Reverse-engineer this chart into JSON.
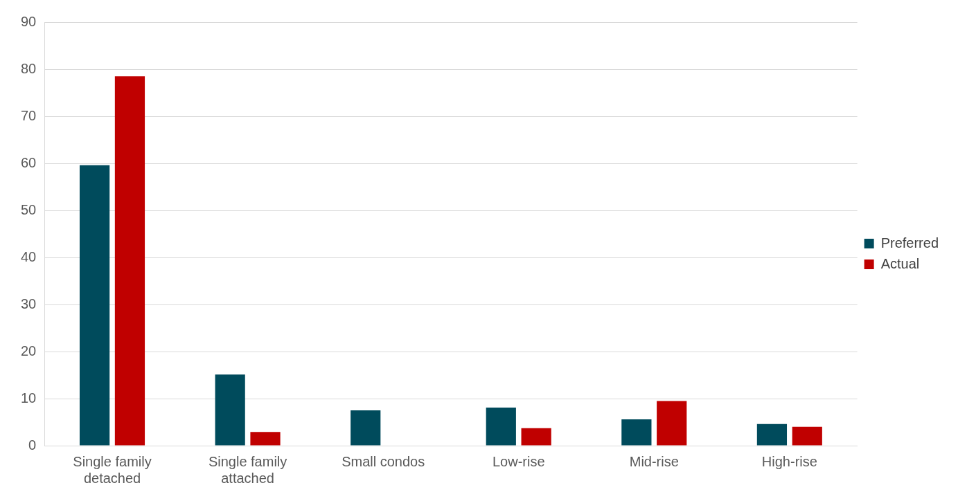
{
  "chart_data": {
    "type": "bar",
    "categories": [
      "Single family detached",
      "Single family attached",
      "Small condos",
      "Low-rise",
      "Mid-rise",
      "High-rise"
    ],
    "series": [
      {
        "name": "Preferred",
        "color": "#004b5c",
        "values": [
          59.6,
          15.1,
          7.5,
          8.1,
          5.6,
          4.6
        ]
      },
      {
        "name": "Actual",
        "color": "#c00000",
        "values": [
          78.5,
          2.9,
          0,
          3.7,
          9.5,
          4.0
        ]
      }
    ],
    "ylim": [
      0,
      90
    ],
    "yticks": [
      0,
      10,
      20,
      30,
      40,
      50,
      60,
      70,
      80,
      90
    ],
    "grid": "y",
    "legend": "right"
  }
}
